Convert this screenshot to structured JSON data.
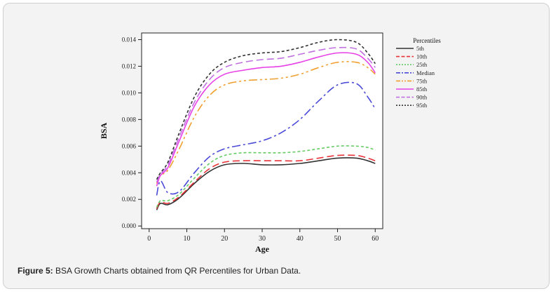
{
  "caption": {
    "label": "Figure 5:",
    "text": " BSA Growth Charts obtained from QR Percentiles for Urban Data."
  },
  "chart_data": {
    "type": "line",
    "xlabel": "Age",
    "ylabel": "BSA",
    "xlim": [
      -2,
      62
    ],
    "ylim": [
      -0.0002,
      0.0145
    ],
    "xticks": [
      0,
      10,
      20,
      30,
      40,
      50,
      60
    ],
    "yticks": [
      "0.000",
      "0.002",
      "0.004",
      "0.006",
      "0.008",
      "0.010",
      "0.012",
      "0.014"
    ],
    "grid": false,
    "legend": {
      "title": "Percentiles",
      "position": "right"
    },
    "x": [
      2,
      3,
      5,
      8,
      12,
      16,
      20,
      25,
      30,
      35,
      40,
      45,
      50,
      55,
      58,
      60
    ],
    "series": [
      {
        "name": "5th",
        "color": "#333333",
        "dash": "solid",
        "values": [
          0.0012,
          0.0017,
          0.0016,
          0.0021,
          0.0032,
          0.0041,
          0.0046,
          0.0047,
          0.0046,
          0.0046,
          0.0047,
          0.0049,
          0.0051,
          0.0051,
          0.0049,
          0.0047
        ]
      },
      {
        "name": "10th",
        "color": "#e8333a",
        "dash": "10,5",
        "values": [
          0.0013,
          0.0018,
          0.0017,
          0.0022,
          0.0033,
          0.0043,
          0.0048,
          0.0049,
          0.0049,
          0.0049,
          0.0049,
          0.0051,
          0.0053,
          0.0053,
          0.0051,
          0.0049
        ]
      },
      {
        "name": "25th",
        "color": "#66cc66",
        "dash": "4,3",
        "values": [
          0.0014,
          0.0019,
          0.0019,
          0.0024,
          0.0036,
          0.0047,
          0.0053,
          0.0055,
          0.0055,
          0.0055,
          0.0056,
          0.0058,
          0.006,
          0.006,
          0.0059,
          0.0057
        ]
      },
      {
        "name": "Median",
        "color": "#4a4ad8",
        "dash": "12,4,3,4",
        "values": [
          0.0023,
          0.0034,
          0.0025,
          0.0026,
          0.004,
          0.0052,
          0.0058,
          0.0061,
          0.0064,
          0.007,
          0.008,
          0.0094,
          0.0106,
          0.0107,
          0.0097,
          0.0088
        ]
      },
      {
        "name": "75th",
        "color": "#f0a030",
        "dash": "12,4,3,4,3,4",
        "values": [
          0.0032,
          0.0038,
          0.0042,
          0.0058,
          0.0082,
          0.0098,
          0.0106,
          0.0109,
          0.011,
          0.0111,
          0.0114,
          0.0119,
          0.0123,
          0.0123,
          0.0119,
          0.0114
        ]
      },
      {
        "name": "85th",
        "color": "#e640e6",
        "dash": "solid",
        "values": [
          0.003,
          0.0038,
          0.0044,
          0.0064,
          0.009,
          0.0106,
          0.0114,
          0.0117,
          0.0119,
          0.012,
          0.0123,
          0.0127,
          0.013,
          0.0129,
          0.0123,
          0.0115
        ]
      },
      {
        "name": "90th",
        "color": "#c070e0",
        "dash": "10,5",
        "values": [
          0.0033,
          0.0039,
          0.0046,
          0.0067,
          0.0093,
          0.011,
          0.0119,
          0.0123,
          0.0125,
          0.0126,
          0.0129,
          0.0132,
          0.0134,
          0.0133,
          0.0126,
          0.0119
        ]
      },
      {
        "name": "95th",
        "color": "#333333",
        "dash": "4,3",
        "values": [
          0.0035,
          0.004,
          0.0048,
          0.007,
          0.0097,
          0.0114,
          0.0123,
          0.0128,
          0.013,
          0.0131,
          0.0134,
          0.0138,
          0.014,
          0.0138,
          0.013,
          0.0122
        ]
      }
    ]
  }
}
